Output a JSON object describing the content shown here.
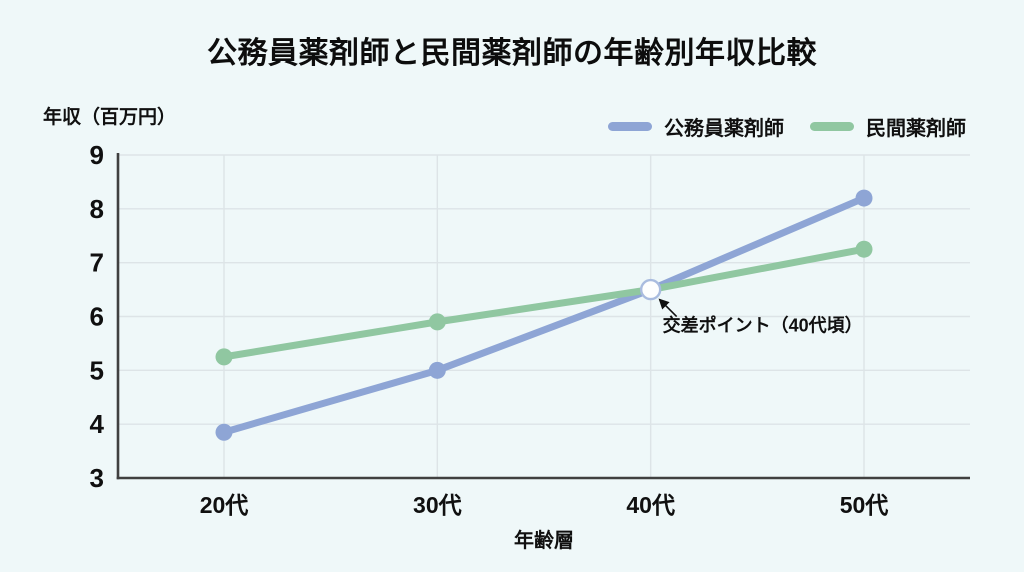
{
  "chart_data": {
    "type": "line",
    "title": "公務員薬剤師と民間薬剤師の年齢別年収比較",
    "xlabel": "年齢層",
    "ylabel": "年収（百万円）",
    "categories": [
      "20代",
      "30代",
      "40代",
      "50代"
    ],
    "series": [
      {
        "name": "公務員薬剤師",
        "color": "#8EA5D5",
        "values": [
          3.85,
          5.0,
          6.5,
          8.2
        ]
      },
      {
        "name": "民間薬剤師",
        "color": "#90C7A1",
        "values": [
          5.25,
          5.9,
          6.5,
          7.25
        ]
      }
    ],
    "ylim": [
      3,
      9
    ],
    "yticks": [
      3,
      4,
      5,
      6,
      7,
      8,
      9
    ],
    "grid": true,
    "legend_position": "top-right",
    "annotation": {
      "text": "交差ポイント（40代頃）",
      "target_category": "40代",
      "value": 6.5
    }
  },
  "colors": {
    "background": "#EFF8F9",
    "grid": "#DDE4E7",
    "axis": "#404040",
    "text": "#101010",
    "intersection_fill": "#FDFEFE",
    "intersection_ring": "#A9BCDF"
  }
}
